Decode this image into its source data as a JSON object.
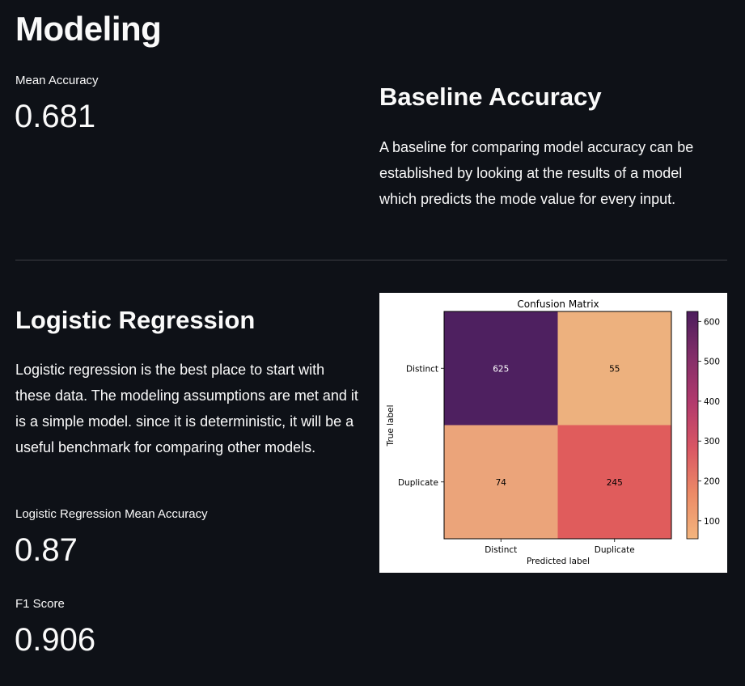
{
  "page": {
    "title": "Modeling"
  },
  "baseline_metric": {
    "label": "Mean Accuracy",
    "value": "0.681"
  },
  "baseline_section": {
    "heading": "Baseline Accuracy",
    "paragraph": "A baseline for comparing model accuracy can be established by looking at the results of a model which predicts the mode value for every input."
  },
  "logreg_section": {
    "heading": "Logistic Regression",
    "paragraph": "Logistic regression is the best place to start with these data. The modeling assumptions are met and it is a simple model. since it is deterministic, it will be a useful benchmark for comparing other models."
  },
  "logreg_metric": {
    "label": "Logistic Regression Mean Accuracy",
    "value": "0.87"
  },
  "f1_metric": {
    "label": "F1 Score",
    "value": "0.906"
  },
  "chart_data": {
    "type": "heatmap",
    "title": "Confusion Matrix",
    "xlabel": "Predicted label",
    "ylabel": "True label",
    "x_categories": [
      "Distinct",
      "Duplicate"
    ],
    "y_categories": [
      "Distinct",
      "Duplicate"
    ],
    "values": [
      [
        625,
        55
      ],
      [
        74,
        245
      ]
    ],
    "colormap": "magma",
    "colorbar": {
      "ticks": [
        100,
        200,
        300,
        400,
        500,
        600
      ],
      "range": [
        55,
        625
      ]
    },
    "cell_colors": [
      [
        "#4e2060",
        "#edb17e"
      ],
      [
        "#eba47a",
        "#e05c5c"
      ]
    ]
  }
}
